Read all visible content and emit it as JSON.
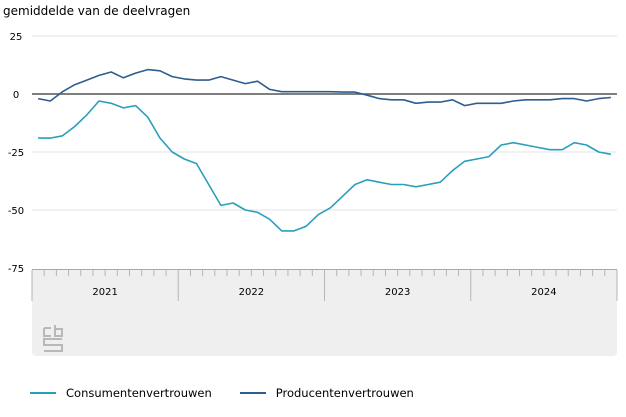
{
  "chart_data": {
    "type": "line",
    "title": "",
    "subtitle": "gemiddelde van de deelvragen",
    "xlabel": "",
    "ylabel": "gemiddelde van de deelvragen",
    "ylim": [
      -75,
      25
    ],
    "yticks": [
      25,
      0,
      -25,
      -50,
      -75
    ],
    "ytick_labels": [
      "25",
      "0",
      "-25",
      "-50",
      "-75"
    ],
    "x_categories": [
      "2021",
      "2022",
      "2023",
      "2024"
    ],
    "months_per_category": 12,
    "grid": true,
    "zero_line": true,
    "legend_position": "bottom-left",
    "series": [
      {
        "name": "Consumentenvertrouwen",
        "color": "#2a9fbc",
        "values": [
          -19,
          -19,
          -18,
          -14,
          -9,
          -3,
          -4,
          -6,
          -5,
          -10,
          -19,
          -25,
          -28,
          -30,
          -39,
          -48,
          -47,
          -50,
          -51,
          -54,
          -59,
          -59,
          -57,
          -52,
          -49,
          -44,
          -39,
          -37,
          -38,
          -39,
          -39,
          -40,
          -39,
          -38,
          -33,
          -29,
          -28,
          -27,
          -22,
          -21,
          -22,
          -23,
          -24,
          -24,
          -21,
          -22,
          -25,
          -26
        ]
      },
      {
        "name": "Producentenvertrouwen",
        "color": "#2e5d8f",
        "values": [
          -2,
          -3,
          1,
          4,
          6,
          8,
          9.5,
          7,
          9,
          10.5,
          10,
          7.5,
          6.5,
          6,
          6,
          7.5,
          6,
          4.5,
          5.5,
          2,
          1,
          1,
          1,
          1,
          1,
          0.8,
          0.8,
          -0.5,
          -2,
          -2.5,
          -2.5,
          -4,
          -3.5,
          -3.5,
          -2.5,
          -5,
          -4,
          -4,
          -4,
          -3,
          -2.5,
          -2.5,
          -2.5,
          -2,
          -2,
          -3,
          -2,
          -1.5
        ]
      }
    ]
  },
  "logo": {
    "name": "cbs-logo"
  }
}
